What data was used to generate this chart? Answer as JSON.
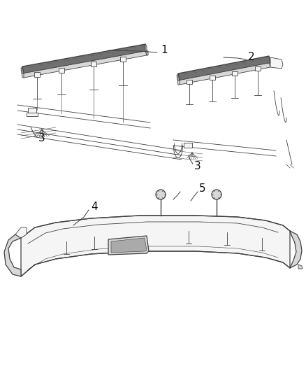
{
  "background_color": "#ffffff",
  "line_color": "#404040",
  "fill_light": "#f5f5f5",
  "fill_mid": "#d8d8d8",
  "fill_dark": "#888888",
  "fill_strip_top": "#707070",
  "figsize": [
    4.38,
    5.33
  ],
  "dpi": 100
}
